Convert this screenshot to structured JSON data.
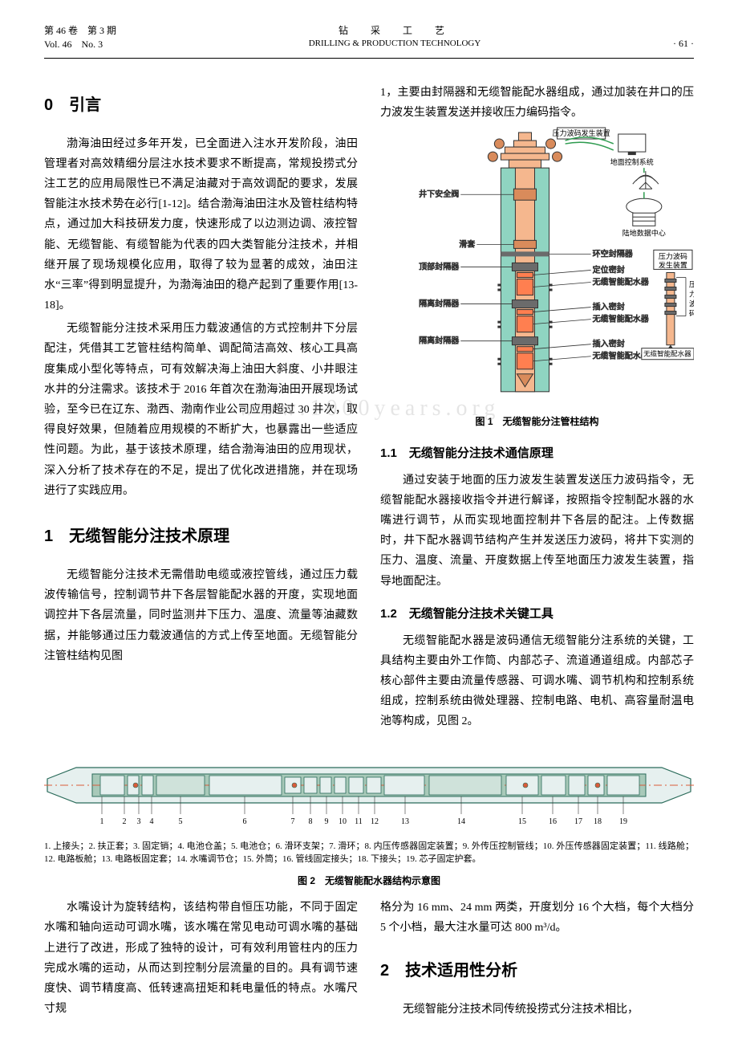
{
  "header": {
    "vol_cn": "第 46 卷　第 3 期",
    "vol_en": "Vol. 46　No. 3",
    "title_cn": "钻　采　工　艺",
    "title_en": "DRILLING & PRODUCTION TECHNOLOGY",
    "page": "· 61 ·"
  },
  "sec0": {
    "heading": "0　引言",
    "p1": "渤海油田经过多年开发，已全面进入注水开发阶段，油田管理者对高效精细分层注水技术要求不断提高，常规投捞式分注工艺的应用局限性已不满足油藏对于高效调配的要求，发展智能注水技术势在必行[1-12]。结合渤海油田注水及管柱结构特点，通过加大科技研发力度，快速形成了以边测边调、液控智能、无缆智能、有缆智能为代表的四大类智能分注技术，并相继开展了现场规模化应用，取得了较为显著的成效，油田注水“三率”得到明显提升，为渤海油田的稳产起到了重要作用[13-18]。",
    "p2": "无缆智能分注技术采用压力载波通信的方式控制井下分层配注，凭借其工艺管柱结构简单、调配简洁高效、核心工具高度集成小型化等特点，可有效解决海上油田大斜度、小井眼注水井的分注需求。该技术于 2016 年首次在渤海油田开展现场试验，至今已在辽东、渤西、渤南作业公司应用超过 30 井次，取得良好效果，但随着应用规模的不断扩大，也暴露出一些适应性问题。为此，基于该技术原理，结合渤海油田的应用现状，深入分析了技术存在的不足，提出了优化改进措施，并在现场进行了实践应用。"
  },
  "sec1": {
    "heading": "1　无缆智能分注技术原理",
    "p1": "无缆智能分注技术无需借助电缆或液控管线，通过压力载波传输信号，控制调节井下各层智能配水器的开度，实现地面调控井下各层流量，同时监测井下压力、温度、流量等油藏数据，并能够通过压力载波通信的方式上传至地面。无缆智能分注管柱结构见图",
    "cont": "1，主要由封隔器和无缆智能配水器组成，通过加装在井口的压力波发生装置发送并接收压力编码指令。",
    "sub1": "1.1　无缆智能分注技术通信原理",
    "sub1_p": "通过安装于地面的压力波发生装置发送压力波码指令，无缆智能配水器接收指令并进行解译，按照指令控制配水器的水嘴进行调节，从而实现地面控制井下各层的配注。上传数据时，井下配水器调节结构产生并发送压力波码，将井下实测的压力、温度、流量、开度数据上传至地面压力波发生装置，指导地面配注。",
    "sub2": "1.2　无缆智能分注技术关键工具",
    "sub2_p": "无缆智能配水器是波码通信无缆智能分注系统的关键，工具结构主要由外工作筒、内部芯子、流道通道组成。内部芯子核心部件主要由流量传感器、可调水嘴、调节机构和控制系统组成，控制系统由微处理器、控制电路、电机、高容量耐温电池等构成，见图 2。"
  },
  "fig1": {
    "caption": "图 1　无缆智能分注管柱结构",
    "labels": {
      "l1": "压力波码发生装置",
      "l2": "地面控制系统",
      "l3": "井下安全阀",
      "l4": "陆地数据中心",
      "l5": "滑套",
      "l6": "环空封隔器",
      "l7": "顶部封隔器",
      "l8": "定位密封",
      "l9": "无缆智能配水器",
      "l10": "隔离封隔器",
      "l11": "插入密封",
      "l12": "无缆智能配水器",
      "l13": "隔离封隔器",
      "l14": "插入密封",
      "l15": "无缆智能配水器",
      "r1": "压力波码",
      "r2": "发生装置",
      "r3": "压力波码",
      "r4": "无缆智能配水器"
    },
    "colors": {
      "casing": "#f5b78e",
      "casing_dark": "#d98b5b",
      "tool": "#ff7f50",
      "fluid": "#8fd4c1",
      "valve": "#6b6b6b",
      "line": "#333333",
      "box_border": "#333333",
      "signal": "#2e9b4f"
    }
  },
  "fig2": {
    "caption": "图 2　无缆智能配水器结构示意图",
    "note": "1. 上接头；2. 扶正套；3. 固定销；4. 电池仓盖；5. 电池仓；6. 滑环支架；7. 滑环；8. 内压传感器固定装置；9. 外传压控制管线；10. 外压传感器固定装置；11. 线路舱；12. 电路板舱；13. 电路板固定套；14. 水嘴调节仓；15. 外筒；16. 管线固定接头；18. 下接头；19. 芯子固定护套。",
    "numbers": [
      "1",
      "2",
      "3",
      "4",
      "5",
      "6",
      "7",
      "8",
      "9",
      "10",
      "11",
      "12",
      "13",
      "14",
      "15",
      "16",
      "17",
      "18",
      "19"
    ],
    "colors": {
      "body": "#e6f0ef",
      "inner": "#a8c9b9",
      "stroke": "#2a6b5a",
      "accent": "#d95b3a",
      "centerline": "#d95b3a"
    }
  },
  "after_fig2": {
    "left_p": "水嘴设计为旋转结构，该结构带自恒压功能，不同于固定水嘴和轴向运动可调水嘴，该水嘴在常见电动可调水嘴的基础上进行了改进，形成了独特的设计，可有效利用管柱内的压力完成水嘴的运动，从而达到控制分层流量的目的。具有调节速度快、调节精度高、低转速高扭矩和耗电量低的特点。水嘴尺寸规",
    "right_p1": "格分为 16 mm、24 mm 两类，开度划分 16 个大档，每个大档分 5 个小档，最大注水量可达 800 m³/d。",
    "sec2": "2　技术适用性分析",
    "right_p2": "无缆智能分注技术同传统投捞式分注技术相比，"
  },
  "watermark": "www.1000years.org"
}
